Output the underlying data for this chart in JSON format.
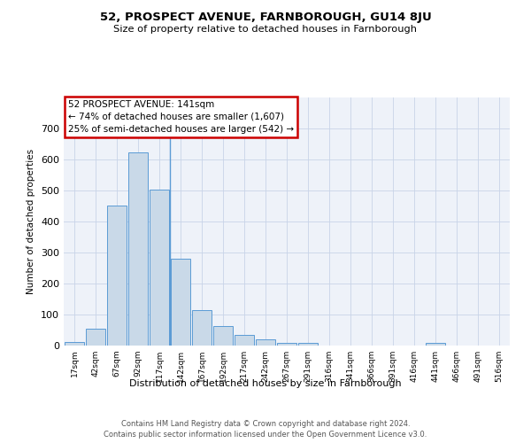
{
  "title": "52, PROSPECT AVENUE, FARNBOROUGH, GU14 8JU",
  "subtitle": "Size of property relative to detached houses in Farnborough",
  "xlabel": "Distribution of detached houses by size in Farnborough",
  "ylabel": "Number of detached properties",
  "categories": [
    "17sqm",
    "42sqm",
    "67sqm",
    "92sqm",
    "117sqm",
    "142sqm",
    "167sqm",
    "192sqm",
    "217sqm",
    "242sqm",
    "267sqm",
    "291sqm",
    "316sqm",
    "341sqm",
    "366sqm",
    "391sqm",
    "416sqm",
    "441sqm",
    "466sqm",
    "491sqm",
    "516sqm"
  ],
  "values": [
    12,
    55,
    450,
    622,
    503,
    280,
    115,
    62,
    35,
    20,
    10,
    8,
    0,
    0,
    0,
    0,
    0,
    8,
    0,
    0,
    0
  ],
  "bar_color": "#c9d9e8",
  "bar_edge_color": "#5b9bd5",
  "annotation_text": "52 PROSPECT AVENUE: 141sqm\n← 74% of detached houses are smaller (1,607)\n25% of semi-detached houses are larger (542) →",
  "annotation_box_color": "#ffffff",
  "annotation_box_edge": "#cc0000",
  "ylim": [
    0,
    800
  ],
  "yticks": [
    0,
    100,
    200,
    300,
    400,
    500,
    600,
    700,
    800
  ],
  "background_color": "#eef2f9",
  "footer_line1": "Contains HM Land Registry data © Crown copyright and database right 2024.",
  "footer_line2": "Contains public sector information licensed under the Open Government Licence v3.0.",
  "prop_line_index": 4.5
}
